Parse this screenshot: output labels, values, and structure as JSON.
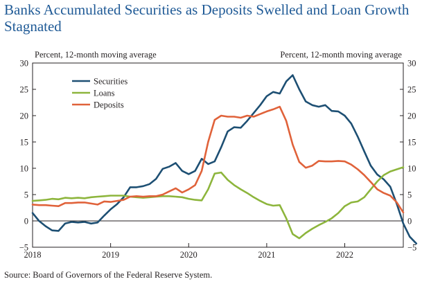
{
  "page": {
    "title": "Banks Accumulated Securities as Deposits Swelled and Loan Growth Stagnated",
    "source": "Source: Board of Governors of the Federal Reserve System."
  },
  "chart_data": {
    "type": "line",
    "title": "Banks Accumulated Securities as Deposits Swelled and Loan Growth Stagnated",
    "ylabel_left": "Percent, 12-month moving average",
    "ylabel_right": "Percent, 12-month moving average",
    "xlabel": "",
    "ylim": [
      -5,
      30
    ],
    "yticks": [
      -5,
      0,
      5,
      10,
      15,
      20,
      25,
      30
    ],
    "xlim": [
      2018.0,
      2022.75
    ],
    "xticks": [
      {
        "value": 2018.0,
        "label": "2018"
      },
      {
        "value": 2019.0,
        "label": "2019"
      },
      {
        "value": 2020.0,
        "label": "2020"
      },
      {
        "value": 2021.0,
        "label": "2021"
      },
      {
        "value": 2022.0,
        "label": "2022"
      }
    ],
    "grid": false,
    "zero_line": true,
    "legend": "top-left",
    "series": [
      {
        "name": "Securities",
        "color": "#1d4f73",
        "points": [
          [
            2018.0,
            1.5
          ],
          [
            2018.083,
            0.0
          ],
          [
            2018.167,
            -1.0
          ],
          [
            2018.25,
            -1.8
          ],
          [
            2018.333,
            -1.9
          ],
          [
            2018.417,
            -0.5
          ],
          [
            2018.5,
            -0.2
          ],
          [
            2018.583,
            -0.3
          ],
          [
            2018.667,
            -0.2
          ],
          [
            2018.75,
            -0.5
          ],
          [
            2018.833,
            -0.3
          ],
          [
            2018.917,
            1.0
          ],
          [
            2019.0,
            2.2
          ],
          [
            2019.083,
            3.2
          ],
          [
            2019.167,
            4.5
          ],
          [
            2019.25,
            6.4
          ],
          [
            2019.333,
            6.4
          ],
          [
            2019.417,
            6.6
          ],
          [
            2019.5,
            7.0
          ],
          [
            2019.583,
            8.0
          ],
          [
            2019.667,
            9.9
          ],
          [
            2019.75,
            10.3
          ],
          [
            2019.833,
            11.0
          ],
          [
            2019.917,
            9.5
          ],
          [
            2020.0,
            8.9
          ],
          [
            2020.083,
            9.5
          ],
          [
            2020.167,
            11.8
          ],
          [
            2020.25,
            10.8
          ],
          [
            2020.333,
            11.3
          ],
          [
            2020.417,
            14.0
          ],
          [
            2020.5,
            17.0
          ],
          [
            2020.583,
            17.8
          ],
          [
            2020.667,
            17.7
          ],
          [
            2020.75,
            19.0
          ],
          [
            2020.833,
            20.5
          ],
          [
            2020.917,
            22.0
          ],
          [
            2021.0,
            23.7
          ],
          [
            2021.083,
            24.5
          ],
          [
            2021.167,
            24.2
          ],
          [
            2021.25,
            26.5
          ],
          [
            2021.333,
            27.7
          ],
          [
            2021.417,
            25.0
          ],
          [
            2021.5,
            22.7
          ],
          [
            2021.583,
            22.0
          ],
          [
            2021.667,
            21.7
          ],
          [
            2021.75,
            22.0
          ],
          [
            2021.833,
            20.9
          ],
          [
            2021.917,
            20.8
          ],
          [
            2022.0,
            20.0
          ],
          [
            2022.083,
            18.5
          ],
          [
            2022.167,
            16.0
          ],
          [
            2022.25,
            13.2
          ],
          [
            2022.333,
            10.5
          ],
          [
            2022.417,
            8.8
          ],
          [
            2022.5,
            7.9
          ],
          [
            2022.583,
            6.5
          ],
          [
            2022.667,
            3.2
          ],
          [
            2022.75,
            -0.5
          ],
          [
            2022.833,
            -3.0
          ],
          [
            2022.917,
            -4.3
          ]
        ]
      },
      {
        "name": "Loans",
        "color": "#8db53c",
        "points": [
          [
            2018.0,
            3.8
          ],
          [
            2018.083,
            3.9
          ],
          [
            2018.167,
            4.0
          ],
          [
            2018.25,
            4.2
          ],
          [
            2018.333,
            4.1
          ],
          [
            2018.417,
            4.4
          ],
          [
            2018.5,
            4.3
          ],
          [
            2018.583,
            4.4
          ],
          [
            2018.667,
            4.3
          ],
          [
            2018.75,
            4.5
          ],
          [
            2018.833,
            4.6
          ],
          [
            2018.917,
            4.7
          ],
          [
            2019.0,
            4.8
          ],
          [
            2019.083,
            4.8
          ],
          [
            2019.167,
            4.8
          ],
          [
            2019.25,
            4.6
          ],
          [
            2019.333,
            4.5
          ],
          [
            2019.417,
            4.4
          ],
          [
            2019.5,
            4.5
          ],
          [
            2019.583,
            4.6
          ],
          [
            2019.667,
            4.7
          ],
          [
            2019.75,
            4.7
          ],
          [
            2019.833,
            4.6
          ],
          [
            2019.917,
            4.5
          ],
          [
            2020.0,
            4.2
          ],
          [
            2020.083,
            4.0
          ],
          [
            2020.167,
            3.9
          ],
          [
            2020.25,
            6.0
          ],
          [
            2020.333,
            9.0
          ],
          [
            2020.417,
            9.2
          ],
          [
            2020.5,
            7.8
          ],
          [
            2020.583,
            6.8
          ],
          [
            2020.667,
            6.0
          ],
          [
            2020.75,
            5.3
          ],
          [
            2020.833,
            4.5
          ],
          [
            2020.917,
            3.8
          ],
          [
            2021.0,
            3.2
          ],
          [
            2021.083,
            2.9
          ],
          [
            2021.167,
            3.0
          ],
          [
            2021.25,
            0.5
          ],
          [
            2021.333,
            -2.5
          ],
          [
            2021.417,
            -3.3
          ],
          [
            2021.5,
            -2.3
          ],
          [
            2021.583,
            -1.5
          ],
          [
            2021.667,
            -0.8
          ],
          [
            2021.75,
            -0.2
          ],
          [
            2021.833,
            0.5
          ],
          [
            2021.917,
            1.5
          ],
          [
            2022.0,
            2.8
          ],
          [
            2022.083,
            3.5
          ],
          [
            2022.167,
            3.7
          ],
          [
            2022.25,
            4.5
          ],
          [
            2022.333,
            6.0
          ],
          [
            2022.417,
            7.5
          ],
          [
            2022.5,
            8.7
          ],
          [
            2022.583,
            9.4
          ],
          [
            2022.667,
            9.8
          ],
          [
            2022.75,
            10.2
          ]
        ]
      },
      {
        "name": "Deposits",
        "color": "#e0623a",
        "points": [
          [
            2018.0,
            3.1
          ],
          [
            2018.083,
            3.0
          ],
          [
            2018.167,
            3.0
          ],
          [
            2018.25,
            2.9
          ],
          [
            2018.333,
            2.8
          ],
          [
            2018.417,
            3.4
          ],
          [
            2018.5,
            3.4
          ],
          [
            2018.583,
            3.5
          ],
          [
            2018.667,
            3.5
          ],
          [
            2018.75,
            3.3
          ],
          [
            2018.833,
            3.1
          ],
          [
            2018.917,
            3.7
          ],
          [
            2019.0,
            3.6
          ],
          [
            2019.083,
            3.8
          ],
          [
            2019.167,
            4.0
          ],
          [
            2019.25,
            4.6
          ],
          [
            2019.333,
            4.7
          ],
          [
            2019.417,
            4.6
          ],
          [
            2019.5,
            4.7
          ],
          [
            2019.583,
            4.7
          ],
          [
            2019.667,
            5.0
          ],
          [
            2019.75,
            5.6
          ],
          [
            2019.833,
            6.2
          ],
          [
            2019.917,
            5.4
          ],
          [
            2020.0,
            6.0
          ],
          [
            2020.083,
            6.8
          ],
          [
            2020.167,
            9.5
          ],
          [
            2020.25,
            15.0
          ],
          [
            2020.333,
            19.2
          ],
          [
            2020.417,
            20.0
          ],
          [
            2020.5,
            19.8
          ],
          [
            2020.583,
            19.8
          ],
          [
            2020.667,
            19.6
          ],
          [
            2020.75,
            20.0
          ],
          [
            2020.833,
            19.8
          ],
          [
            2020.917,
            20.3
          ],
          [
            2021.0,
            20.8
          ],
          [
            2021.083,
            21.2
          ],
          [
            2021.167,
            21.7
          ],
          [
            2021.25,
            19.0
          ],
          [
            2021.333,
            14.5
          ],
          [
            2021.417,
            11.2
          ],
          [
            2021.5,
            10.1
          ],
          [
            2021.583,
            10.5
          ],
          [
            2021.667,
            11.4
          ],
          [
            2021.75,
            11.3
          ],
          [
            2021.833,
            11.3
          ],
          [
            2021.917,
            11.4
          ],
          [
            2022.0,
            11.3
          ],
          [
            2022.083,
            10.7
          ],
          [
            2022.167,
            9.8
          ],
          [
            2022.25,
            8.7
          ],
          [
            2022.333,
            7.4
          ],
          [
            2022.417,
            6.0
          ],
          [
            2022.5,
            5.3
          ],
          [
            2022.583,
            4.8
          ],
          [
            2022.667,
            3.5
          ],
          [
            2022.75,
            1.6
          ]
        ]
      }
    ]
  }
}
